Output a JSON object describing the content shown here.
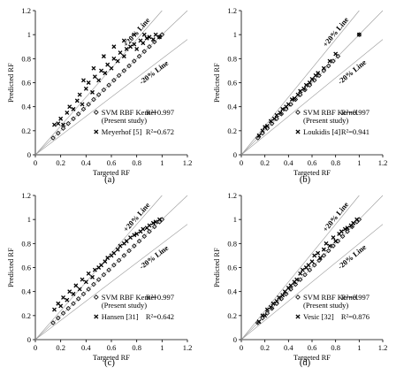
{
  "panels": [
    {
      "label": "(a)",
      "xlabel": "Targeted RF",
      "ylabel": "Predicted RF",
      "ref_lines": {
        "plus": "+20% Line",
        "minus": "-20% Line"
      },
      "legend": [
        {
          "marker": "diamond",
          "name": "SVM RBF Kernel",
          "subname": "(Present study)",
          "r2": "R²=0.997"
        },
        {
          "marker": "x",
          "name": "Meyerhof [5]",
          "subname": "",
          "r2": "R²=0.672"
        }
      ]
    },
    {
      "label": "(b)",
      "xlabel": "Targeted RF",
      "ylabel": "Predicted RF",
      "ref_lines": {
        "plus": "+20% Line",
        "minus": "-20% Line"
      },
      "legend": [
        {
          "marker": "diamond",
          "name": "SVM RBF Kernel",
          "subname": "(Present study)",
          "r2": "R²=0.997"
        },
        {
          "marker": "x",
          "name": "Loukidis [4]",
          "subname": "",
          "r2": "R²=0.941"
        }
      ]
    },
    {
      "label": "(c)",
      "xlabel": "Targeted RF",
      "ylabel": "Predicted RF",
      "ref_lines": {
        "plus": "+20% Line",
        "minus": "-20% Line"
      },
      "legend": [
        {
          "marker": "diamond",
          "name": "SVM RBF Kernel",
          "subname": "(Present study)",
          "r2": "R²=0.997"
        },
        {
          "marker": "x",
          "name": "Hansen [31]",
          "subname": "",
          "r2": "R²=0.642"
        }
      ]
    },
    {
      "label": "(d)",
      "xlabel": "Targeted RF",
      "ylabel": "Predicted RF",
      "ref_lines": {
        "plus": "+20% Line",
        "minus": "-20% Line"
      },
      "legend": [
        {
          "marker": "diamond",
          "name": "SVM RBF Kernel",
          "subname": "(Present study)",
          "r2": "R²=0.997"
        },
        {
          "marker": "x",
          "name": "Vesic [32]",
          "subname": "",
          "r2": "R²=0.876"
        }
      ]
    }
  ],
  "chart_data": [
    {
      "type": "scatter",
      "xlabel": "Targeted RF",
      "ylabel": "Predicted RF",
      "xlim": [
        0,
        1.2
      ],
      "ylim": [
        0,
        1.2
      ],
      "xticks": [
        "0",
        "0.2",
        "0.4",
        "0.6",
        "0.8",
        "1",
        "1.2"
      ],
      "yticks": [
        "0",
        "0.2",
        "0.4",
        "0.6",
        "0.8",
        "1",
        "1.2"
      ],
      "grid": false,
      "legend": "bottom-right",
      "series": [
        {
          "name": "SVM RBF Kernel (Present study)",
          "marker": "diamond",
          "x": [
            0.14,
            0.18,
            0.22,
            0.26,
            0.3,
            0.34,
            0.38,
            0.42,
            0.46,
            0.5,
            0.54,
            0.58,
            0.62,
            0.66,
            0.7,
            0.74,
            0.78,
            0.82,
            0.86,
            0.9,
            0.94,
            0.98,
            1.0
          ],
          "y": [
            0.14,
            0.18,
            0.22,
            0.26,
            0.3,
            0.34,
            0.38,
            0.42,
            0.46,
            0.5,
            0.54,
            0.58,
            0.62,
            0.66,
            0.7,
            0.74,
            0.78,
            0.82,
            0.86,
            0.9,
            0.94,
            0.98,
            1.0
          ]
        },
        {
          "name": "Meyerhof [5]",
          "marker": "x",
          "x": [
            0.15,
            0.18,
            0.2,
            0.22,
            0.25,
            0.27,
            0.3,
            0.33,
            0.35,
            0.37,
            0.4,
            0.42,
            0.45,
            0.47,
            0.5,
            0.52,
            0.55,
            0.57,
            0.6,
            0.62,
            0.65,
            0.67,
            0.7,
            0.72,
            0.75,
            0.78,
            0.8,
            0.83,
            0.85,
            0.88,
            0.9,
            0.93,
            0.95,
            0.98,
            0.38,
            0.46,
            0.54,
            0.62,
            0.7,
            0.78,
            0.86
          ],
          "y": [
            0.25,
            0.26,
            0.3,
            0.25,
            0.35,
            0.4,
            0.38,
            0.45,
            0.5,
            0.42,
            0.55,
            0.6,
            0.52,
            0.65,
            0.62,
            0.7,
            0.68,
            0.75,
            0.72,
            0.8,
            0.78,
            0.85,
            0.82,
            0.88,
            0.9,
            0.92,
            0.88,
            0.95,
            0.93,
            0.97,
            0.98,
            0.96,
            1.0,
            0.98,
            0.62,
            0.72,
            0.82,
            0.9,
            0.95,
            1.0,
            1.0
          ]
        }
      ]
    },
    {
      "type": "scatter",
      "xlabel": "Targeted RF",
      "ylabel": "Predicted RF",
      "xlim": [
        0,
        1.2
      ],
      "ylim": [
        0,
        1.2
      ],
      "xticks": [
        "0",
        "0.2",
        "0.4",
        "0.6",
        "0.8",
        "1",
        "1.2"
      ],
      "yticks": [
        "0",
        "0.2",
        "0.4",
        "0.6",
        "0.8",
        "1",
        "1.2"
      ],
      "grid": false,
      "legend": "bottom-right",
      "series": [
        {
          "name": "SVM RBF Kernel (Present study)",
          "marker": "diamond",
          "x": [
            0.14,
            0.18,
            0.22,
            0.26,
            0.3,
            0.34,
            0.38,
            0.42,
            0.46,
            0.5,
            0.54,
            0.58,
            0.62,
            0.66,
            0.7,
            0.74,
            0.78,
            0.82,
            1.0
          ],
          "y": [
            0.14,
            0.18,
            0.22,
            0.26,
            0.3,
            0.34,
            0.38,
            0.42,
            0.46,
            0.5,
            0.54,
            0.58,
            0.62,
            0.66,
            0.7,
            0.74,
            0.78,
            0.82,
            1.0
          ]
        },
        {
          "name": "Loukidis [4]",
          "marker": "x",
          "x": [
            0.15,
            0.18,
            0.2,
            0.22,
            0.25,
            0.28,
            0.3,
            0.33,
            0.35,
            0.38,
            0.4,
            0.43,
            0.45,
            0.48,
            0.5,
            0.53,
            0.55,
            0.58,
            0.6,
            0.63,
            0.65,
            0.7,
            0.75,
            0.8,
            1.0
          ],
          "y": [
            0.16,
            0.2,
            0.23,
            0.24,
            0.28,
            0.3,
            0.33,
            0.35,
            0.38,
            0.4,
            0.42,
            0.46,
            0.47,
            0.5,
            0.53,
            0.55,
            0.58,
            0.6,
            0.63,
            0.66,
            0.68,
            0.72,
            0.78,
            0.84,
            1.0
          ]
        }
      ]
    },
    {
      "type": "scatter",
      "xlabel": "Targeted RF",
      "ylabel": "Predicted RF",
      "xlim": [
        0,
        1.2
      ],
      "ylim": [
        0,
        1.2
      ],
      "xticks": [
        "0",
        "0.2",
        "0.4",
        "0.6",
        "0.8",
        "1",
        "1.2"
      ],
      "yticks": [
        "0",
        "0.2",
        "0.4",
        "0.6",
        "0.8",
        "1",
        "1.2"
      ],
      "grid": false,
      "legend": "bottom-right",
      "series": [
        {
          "name": "SVM RBF Kernel (Present study)",
          "marker": "diamond",
          "x": [
            0.14,
            0.18,
            0.22,
            0.26,
            0.3,
            0.34,
            0.38,
            0.42,
            0.46,
            0.5,
            0.54,
            0.58,
            0.62,
            0.66,
            0.7,
            0.74,
            0.78,
            0.82,
            0.86,
            0.9,
            0.94,
            0.98,
            1.0
          ],
          "y": [
            0.14,
            0.18,
            0.22,
            0.26,
            0.3,
            0.34,
            0.38,
            0.42,
            0.46,
            0.5,
            0.54,
            0.58,
            0.62,
            0.66,
            0.7,
            0.74,
            0.78,
            0.82,
            0.86,
            0.9,
            0.94,
            0.98,
            1.0
          ]
        },
        {
          "name": "Hansen [31]",
          "marker": "x",
          "x": [
            0.15,
            0.18,
            0.2,
            0.22,
            0.25,
            0.27,
            0.3,
            0.32,
            0.35,
            0.37,
            0.4,
            0.42,
            0.45,
            0.47,
            0.5,
            0.52,
            0.55,
            0.57,
            0.6,
            0.62,
            0.65,
            0.67,
            0.7,
            0.72,
            0.75,
            0.78,
            0.8,
            0.83,
            0.85,
            0.88,
            0.9,
            0.93,
            0.95,
            0.98
          ],
          "y": [
            0.25,
            0.3,
            0.28,
            0.35,
            0.33,
            0.4,
            0.38,
            0.45,
            0.42,
            0.5,
            0.48,
            0.55,
            0.52,
            0.58,
            0.6,
            0.62,
            0.65,
            0.68,
            0.7,
            0.72,
            0.75,
            0.78,
            0.8,
            0.82,
            0.85,
            0.87,
            0.88,
            0.9,
            0.92,
            0.93,
            0.95,
            0.97,
            0.98,
            1.0
          ]
        }
      ]
    },
    {
      "type": "scatter",
      "xlabel": "Targeted RF",
      "ylabel": "Predicted RF",
      "xlim": [
        0,
        1.2
      ],
      "ylim": [
        0,
        1.2
      ],
      "xticks": [
        "0",
        "0.2",
        "0.4",
        "0.6",
        "0.8",
        "1",
        "1.2"
      ],
      "yticks": [
        "0",
        "0.2",
        "0.4",
        "0.6",
        "0.8",
        "1",
        "1.2"
      ],
      "grid": false,
      "legend": "bottom-right",
      "series": [
        {
          "name": "SVM RBF Kernel (Present study)",
          "marker": "diamond",
          "x": [
            0.14,
            0.18,
            0.22,
            0.26,
            0.3,
            0.34,
            0.38,
            0.42,
            0.46,
            0.5,
            0.54,
            0.58,
            0.62,
            0.66,
            0.7,
            0.74,
            0.78,
            0.82,
            0.86,
            0.9,
            0.94,
            0.98,
            1.0
          ],
          "y": [
            0.14,
            0.18,
            0.22,
            0.26,
            0.3,
            0.34,
            0.38,
            0.42,
            0.46,
            0.5,
            0.54,
            0.58,
            0.62,
            0.66,
            0.7,
            0.74,
            0.78,
            0.82,
            0.86,
            0.9,
            0.94,
            0.98,
            1.0
          ]
        },
        {
          "name": "Vesic [32]",
          "marker": "x",
          "x": [
            0.15,
            0.18,
            0.2,
            0.22,
            0.25,
            0.27,
            0.3,
            0.32,
            0.35,
            0.37,
            0.4,
            0.42,
            0.45,
            0.47,
            0.5,
            0.52,
            0.55,
            0.57,
            0.6,
            0.62,
            0.65,
            0.67,
            0.7,
            0.72,
            0.75,
            0.78,
            0.8,
            0.83,
            0.85,
            0.88,
            0.9,
            0.93,
            0.95,
            0.98
          ],
          "y": [
            0.15,
            0.2,
            0.2,
            0.25,
            0.27,
            0.3,
            0.32,
            0.35,
            0.37,
            0.4,
            0.43,
            0.45,
            0.48,
            0.5,
            0.55,
            0.58,
            0.6,
            0.62,
            0.65,
            0.7,
            0.72,
            0.68,
            0.75,
            0.8,
            0.78,
            0.85,
            0.82,
            0.88,
            0.9,
            0.92,
            0.93,
            0.95,
            0.97,
            1.0
          ]
        }
      ]
    }
  ]
}
